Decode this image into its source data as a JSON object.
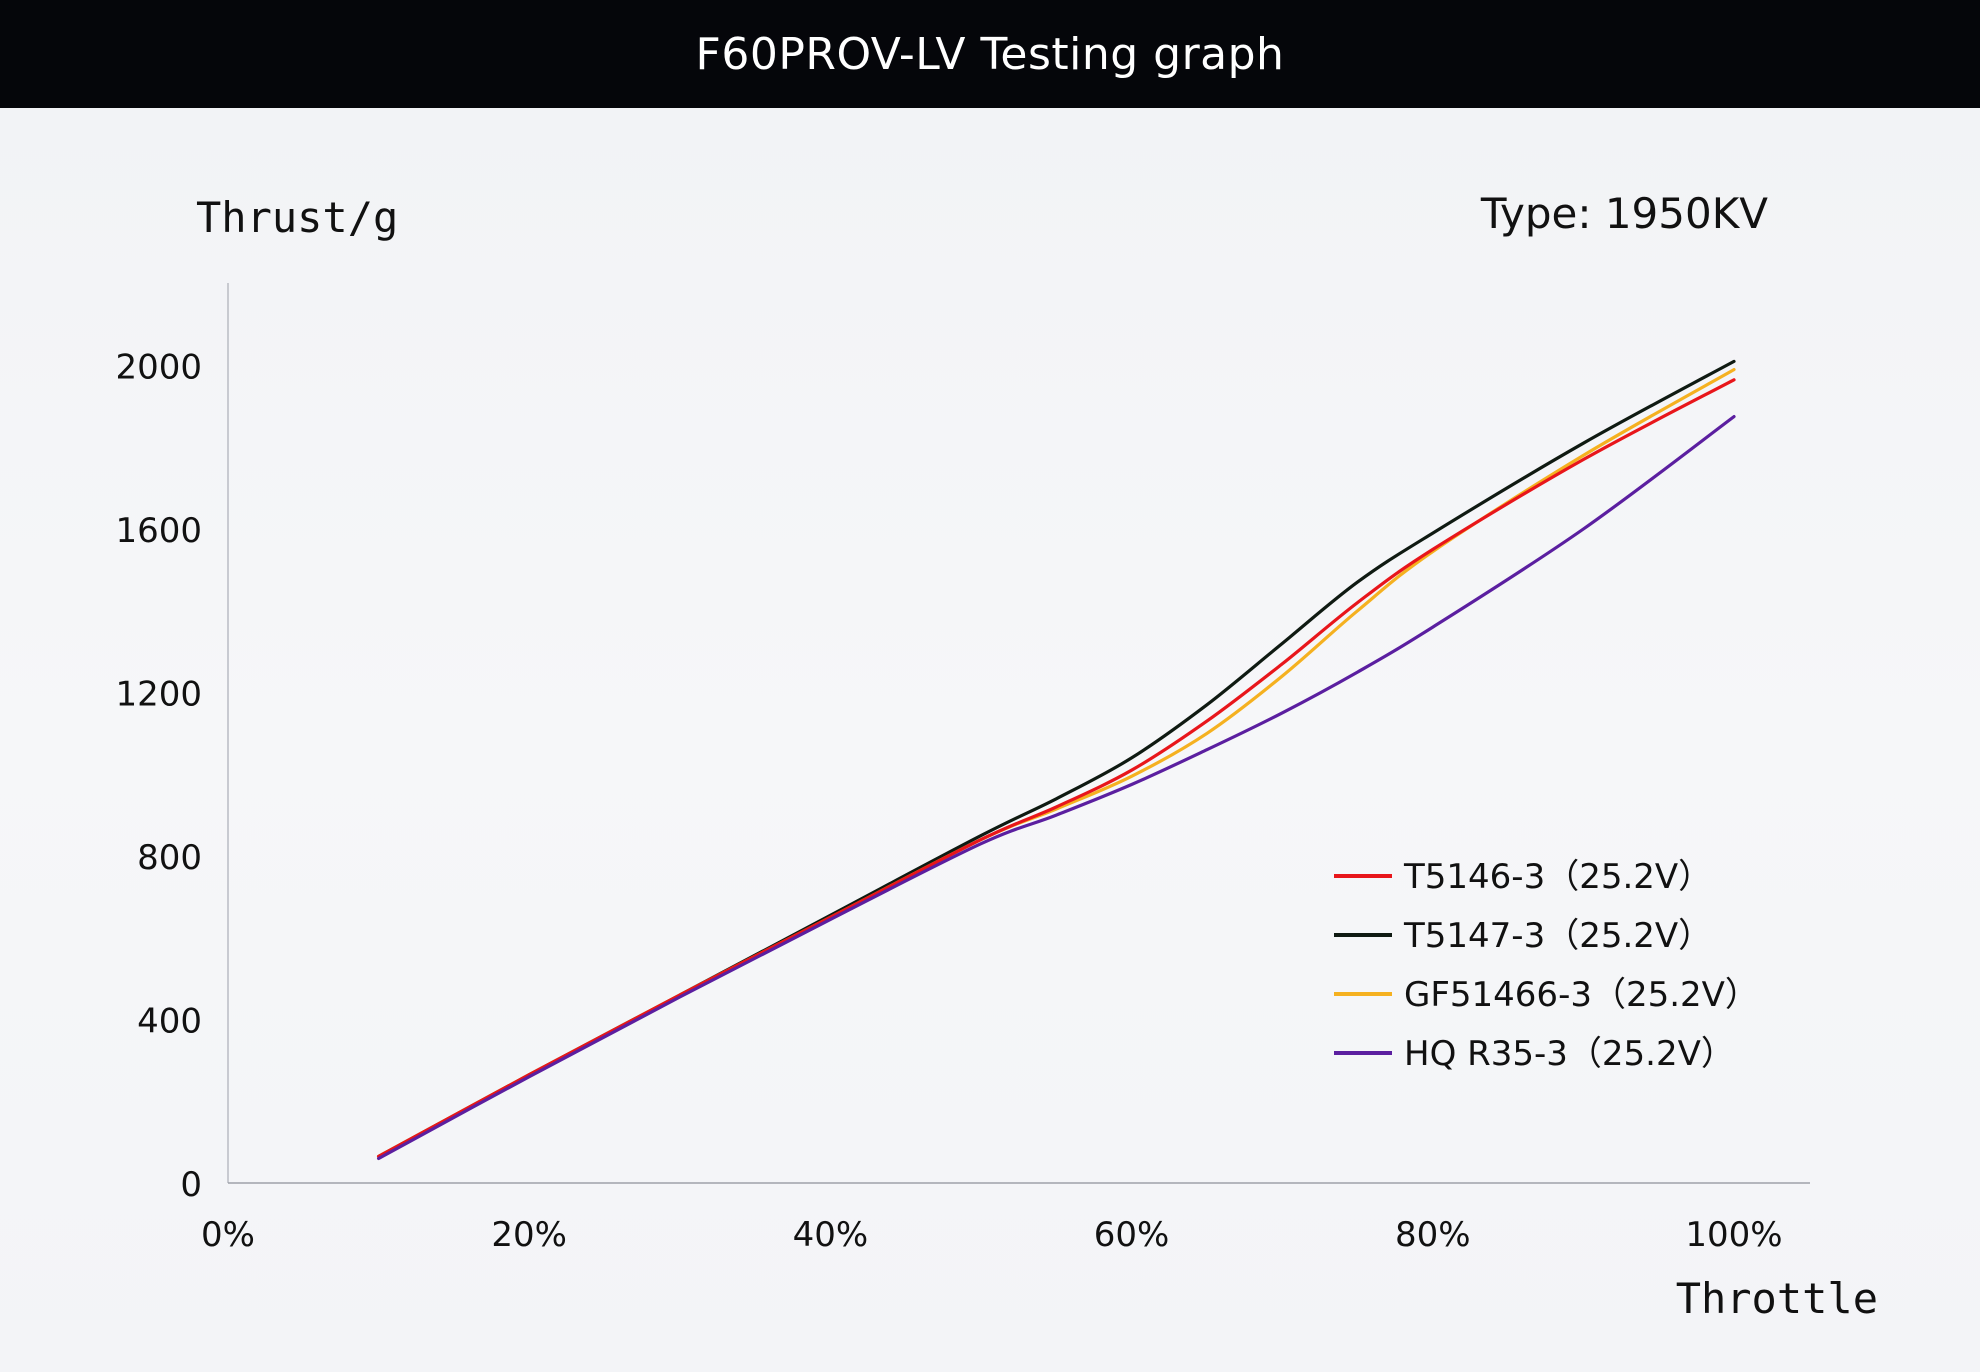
{
  "header": {
    "title": "F60PROV-LV Testing graph"
  },
  "chart_data": {
    "type": "line",
    "title": "F60PROV-LV Testing graph",
    "subtitle": "Type:  1950KV",
    "ylabel": "Thrust/g",
    "xlabel": "Throttle",
    "x_ticks": [
      "0%",
      "20%",
      "40%",
      "60%",
      "80%",
      "100%"
    ],
    "y_ticks": [
      "0",
      "400",
      "800",
      "1200",
      "1600",
      "2000"
    ],
    "x_range": [
      0,
      100
    ],
    "y_range": [
      0,
      2200
    ],
    "grid": false,
    "legend_position": "lower-right",
    "x": [
      10,
      20,
      30,
      40,
      50,
      55,
      60,
      65,
      70,
      75,
      80,
      90,
      100
    ],
    "series": [
      {
        "name": "T5146-3（25.2V）",
        "color": "#e8161b",
        "values": [
          65,
          265,
          460,
          650,
          840,
          920,
          1010,
          1130,
          1270,
          1420,
          1550,
          1770,
          1965
        ]
      },
      {
        "name": "T5147-3（25.2V）",
        "color": "#0f1a12",
        "values": [
          65,
          265,
          460,
          655,
          850,
          940,
          1040,
          1170,
          1320,
          1470,
          1590,
          1810,
          2010
        ]
      },
      {
        "name": "GF51466-3（25.2V）",
        "color": "#f5b120",
        "values": [
          65,
          265,
          460,
          650,
          840,
          915,
          995,
          1100,
          1240,
          1400,
          1545,
          1780,
          1990
        ]
      },
      {
        "name": "HQ R35-3（25.2V）",
        "color": "#5b1fa0",
        "values": [
          60,
          260,
          455,
          645,
          830,
          900,
          975,
          1060,
          1150,
          1250,
          1360,
          1600,
          1875
        ]
      }
    ]
  }
}
